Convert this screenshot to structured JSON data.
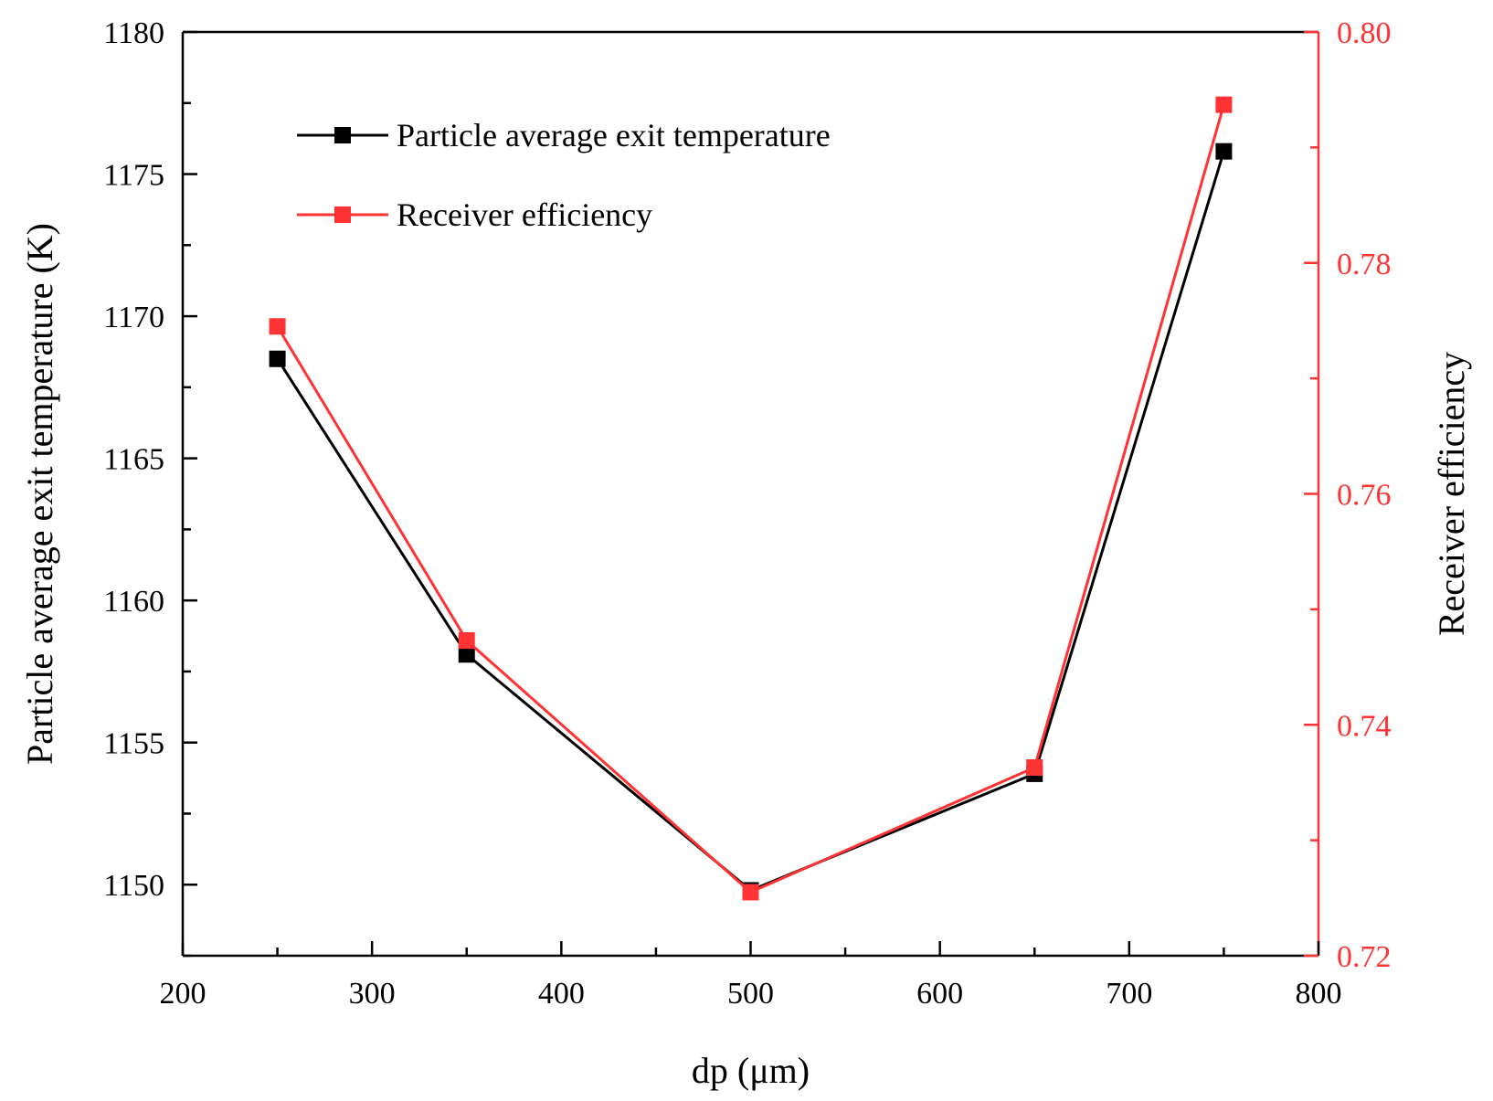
{
  "colors": {
    "series_temperature": "#000000",
    "series_efficiency": "#ff3333",
    "axis": "#000000",
    "right_axis": "#ff3333"
  },
  "chart_data": {
    "type": "line",
    "title": "",
    "xlabel": "dp (μm)",
    "ylabel": "Particle average exit temperature (K)",
    "y2label": "Receiver efficiency",
    "xlim": [
      200,
      800
    ],
    "ylim": [
      1147.5,
      1180
    ],
    "y2lim": [
      0.72,
      0.8
    ],
    "x_ticks": [
      "200",
      "300",
      "400",
      "500",
      "600",
      "700",
      "800"
    ],
    "y_ticks": [
      "1150",
      "1155",
      "1160",
      "1165",
      "1170",
      "1175",
      "1180"
    ],
    "y2_ticks": [
      "0.72",
      "0.74",
      "0.76",
      "0.78",
      "0.80"
    ],
    "legend_position": "top-left",
    "grid": false,
    "series": [
      {
        "name": "Particle average exit temperature",
        "axis": "left",
        "x": [
          250,
          350,
          500,
          650,
          750
        ],
        "values": [
          1168.5,
          1158.1,
          1149.8,
          1153.9,
          1175.8
        ]
      },
      {
        "name": "Receiver efficiency",
        "axis": "right",
        "x": [
          250,
          350,
          500,
          650,
          750
        ],
        "values": [
          0.7745,
          0.7473,
          0.7255,
          0.7363,
          0.7937
        ]
      }
    ]
  }
}
